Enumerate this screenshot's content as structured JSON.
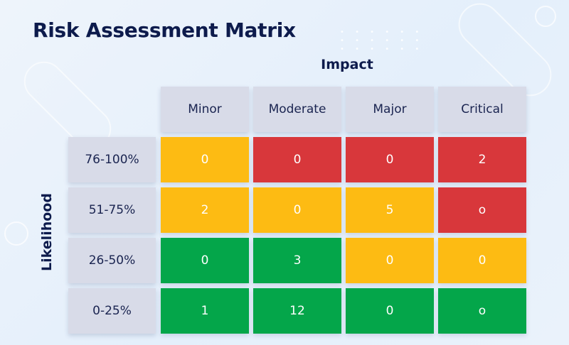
{
  "title": "Risk Assessment Matrix",
  "axes": {
    "impact": "Impact",
    "likelihood": "Likelihood"
  },
  "impact_levels": [
    "Minor",
    "Moderate",
    "Major",
    "Critical"
  ],
  "likelihood_levels": [
    "76-100%",
    "51-75%",
    "26-50%",
    "0-25%"
  ],
  "colors": {
    "red": "#d8373b",
    "amber": "#fdbb13",
    "green": "#04a64a",
    "header": "#d8dbe8",
    "title": "#0d1b4c"
  },
  "matrix": [
    [
      {
        "value": "0",
        "level": "amber"
      },
      {
        "value": "0",
        "level": "red"
      },
      {
        "value": "0",
        "level": "red"
      },
      {
        "value": "2",
        "level": "red"
      }
    ],
    [
      {
        "value": "2",
        "level": "amber"
      },
      {
        "value": "0",
        "level": "amber"
      },
      {
        "value": "5",
        "level": "amber"
      },
      {
        "value": "o",
        "level": "red"
      }
    ],
    [
      {
        "value": "0",
        "level": "green"
      },
      {
        "value": "3",
        "level": "green"
      },
      {
        "value": "0",
        "level": "amber"
      },
      {
        "value": "0",
        "level": "amber"
      }
    ],
    [
      {
        "value": "1",
        "level": "green"
      },
      {
        "value": "12",
        "level": "green"
      },
      {
        "value": "0",
        "level": "green"
      },
      {
        "value": "o",
        "level": "green"
      }
    ]
  ]
}
